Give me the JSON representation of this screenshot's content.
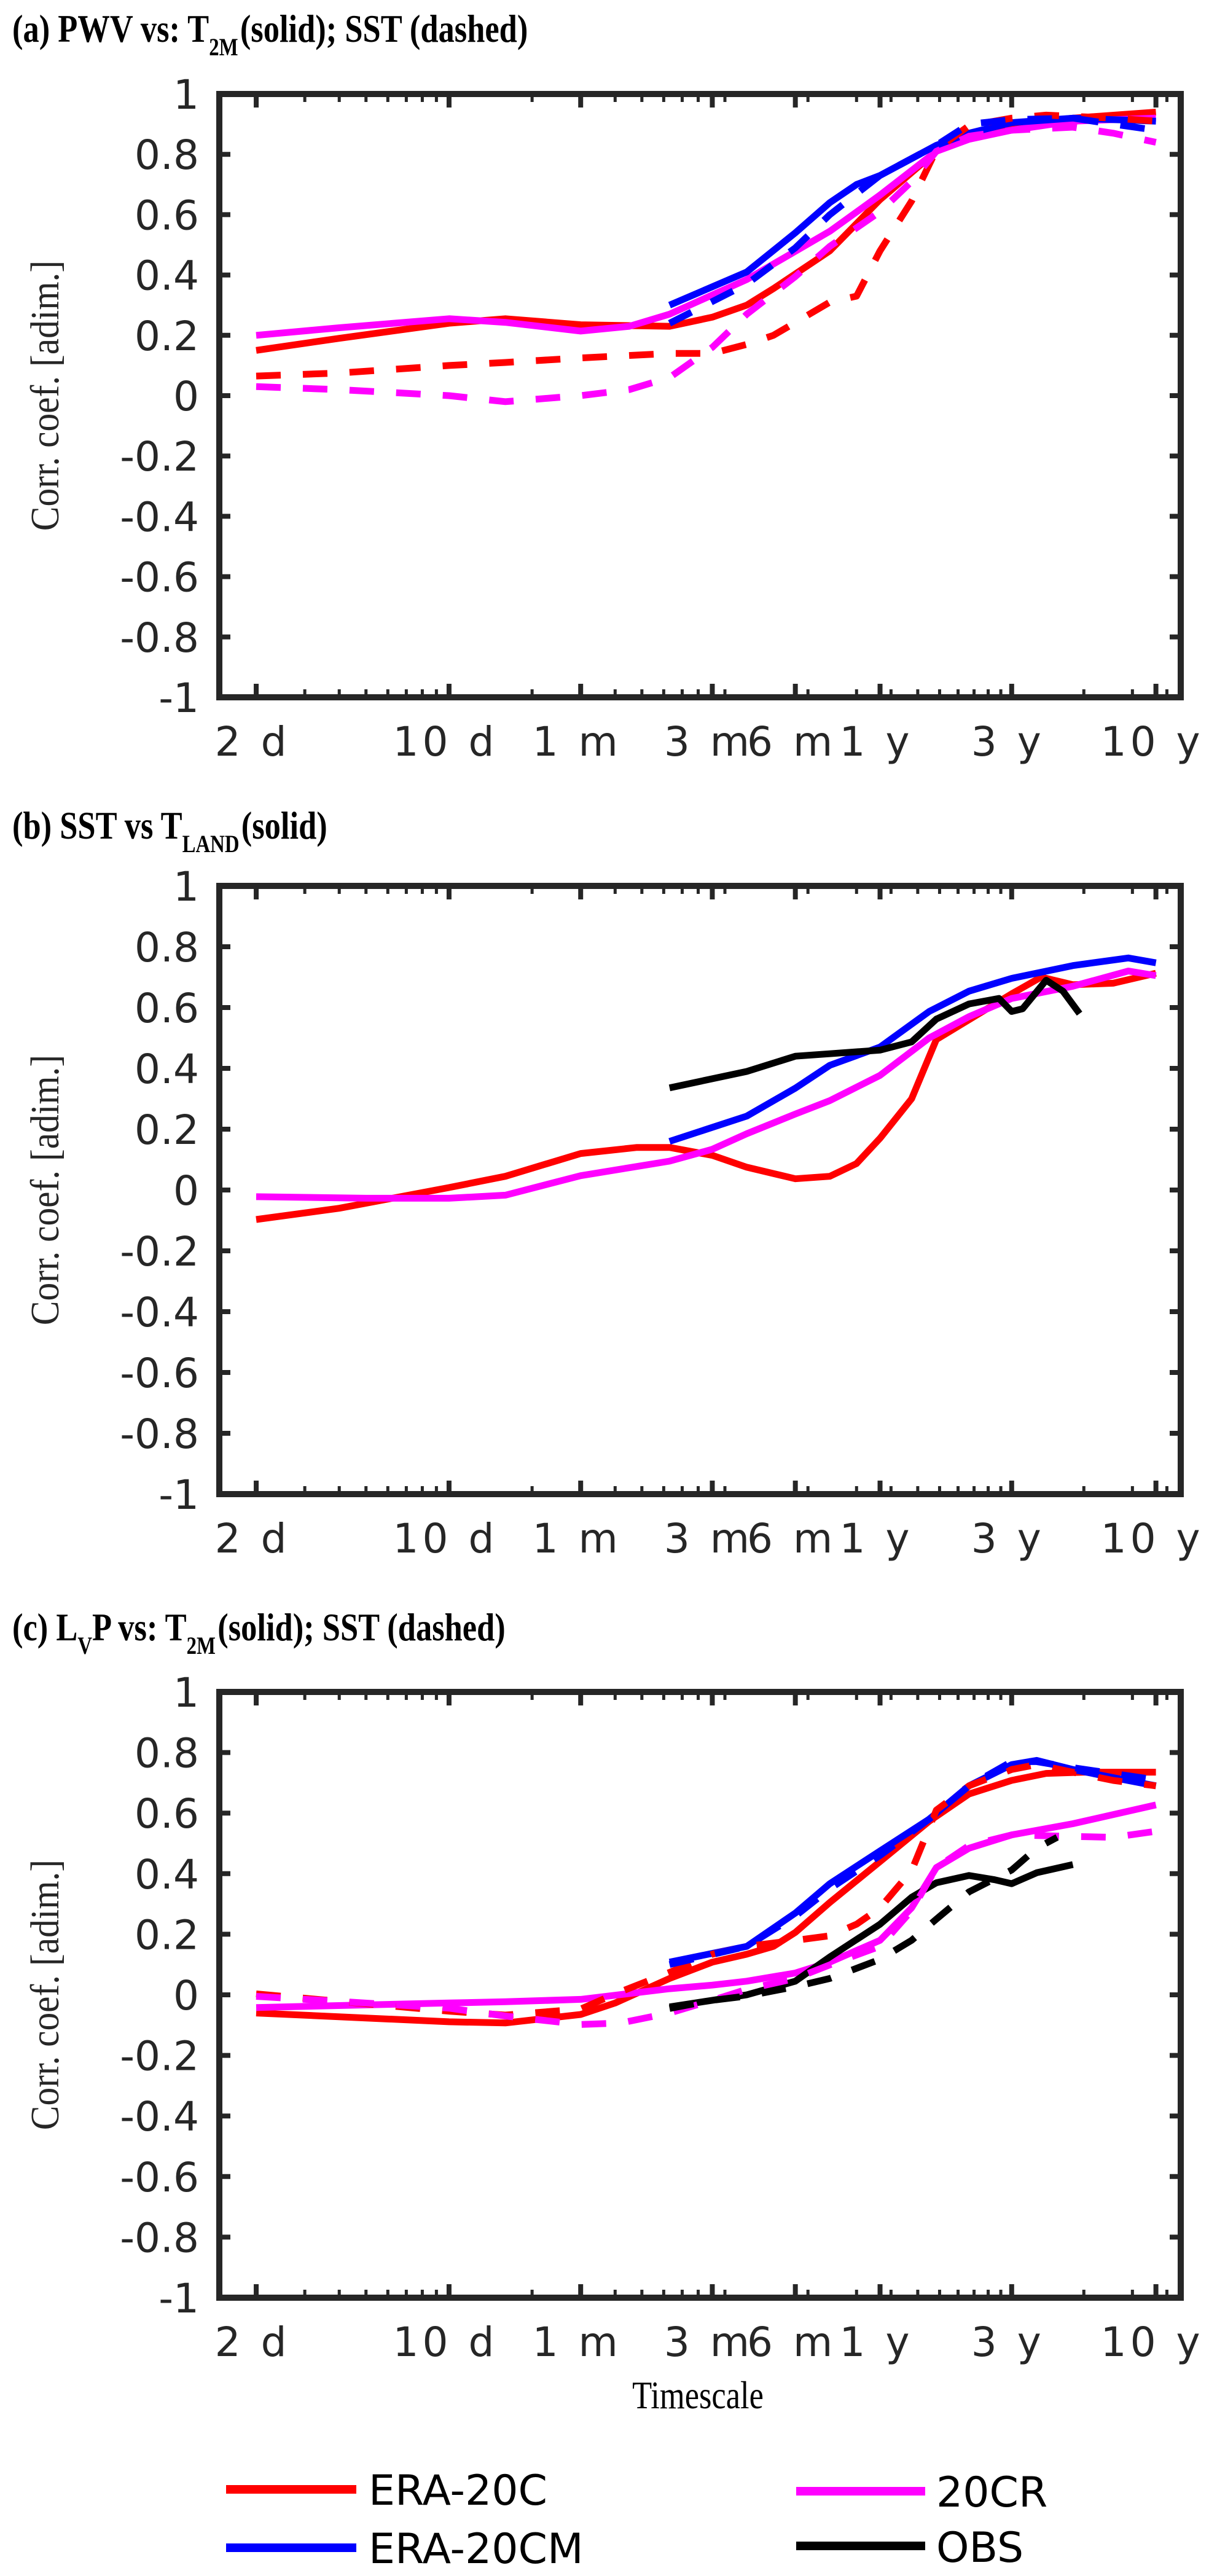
{
  "figure": {
    "xlabel": "Timescale",
    "ylabel": "Corr. coef. [adim.]"
  },
  "legend": {
    "placement": "bottom",
    "items": [
      {
        "label": "ERA-20C",
        "color": "#ff0000"
      },
      {
        "label": "20CR",
        "color": "#ff00ff"
      },
      {
        "label": "ERA-20CM",
        "color": "#0000ff"
      },
      {
        "label": "OBS",
        "color": "#000000"
      }
    ]
  },
  "chart_data": [
    {
      "type": "line",
      "panel": "a",
      "title": {
        "prefix": "(a) PWV vs: T",
        "sub": "2M",
        "suffix": "(solid); SST  (dashed)"
      },
      "xlabel": "Timescale",
      "ylabel": "Corr. coef. [adim.]",
      "xscale": "log",
      "xunit": "days",
      "xlim": [
        1.47,
        4490
      ],
      "ylim": [
        -1,
        1
      ],
      "grid": false,
      "xticks": [
        {
          "value": 2,
          "label": "2 d"
        },
        {
          "value": 10,
          "label": "10 d"
        },
        {
          "value": 30,
          "label": "1 m"
        },
        {
          "value": 90,
          "label": "3 m"
        },
        {
          "value": 180,
          "label": "6 m"
        },
        {
          "value": 365,
          "label": "1 y"
        },
        {
          "value": 1095,
          "label": "3 y"
        },
        {
          "value": 3650,
          "label": "10 y"
        }
      ],
      "yticks": [
        {
          "value": 1,
          "label": "1"
        },
        {
          "value": 0.8,
          "label": "0.8"
        },
        {
          "value": 0.6,
          "label": "0.6"
        },
        {
          "value": 0.4,
          "label": "0.4"
        },
        {
          "value": 0.2,
          "label": "0.2"
        },
        {
          "value": 0,
          "label": "0"
        },
        {
          "value": -0.2,
          "label": "-0.2"
        },
        {
          "value": -0.4,
          "label": "-0.4"
        },
        {
          "value": -0.6,
          "label": "-0.6"
        },
        {
          "value": -0.8,
          "label": "-0.8"
        },
        {
          "value": -1,
          "label": "-1"
        }
      ],
      "series": [
        {
          "name": "ERA-20C vs T2M",
          "dataset": "ERA-20C",
          "style": "solid",
          "color": "#ff0000",
          "x": [
            2,
            4,
            10,
            16,
            30,
            63,
            90,
            120,
            150,
            240,
            365,
            584,
            767,
            1095,
            1825,
            3650
          ],
          "y": [
            0.15,
            0.19,
            0.24,
            0.255,
            0.235,
            0.23,
            0.26,
            0.3,
            0.355,
            0.48,
            0.65,
            0.81,
            0.87,
            0.9,
            0.92,
            0.94
          ]
        },
        {
          "name": "20CR vs T2M",
          "dataset": "20CR",
          "style": "solid",
          "color": "#ff00ff",
          "x": [
            2,
            4,
            10,
            16,
            30,
            45,
            63,
            120,
            240,
            365,
            584,
            767,
            1095,
            1825,
            3650
          ],
          "y": [
            0.2,
            0.225,
            0.255,
            0.243,
            0.214,
            0.23,
            0.27,
            0.385,
            0.545,
            0.665,
            0.81,
            0.85,
            0.88,
            0.91,
            0.92
          ]
        },
        {
          "name": "ERA-20CM vs T2M",
          "dataset": "ERA-20CM",
          "style": "solid",
          "color": "#0000ff",
          "x": [
            63,
            120,
            180,
            240,
            300,
            365,
            584,
            767,
            1095,
            1825,
            3650
          ],
          "y": [
            0.3,
            0.41,
            0.54,
            0.64,
            0.7,
            0.73,
            0.83,
            0.87,
            0.905,
            0.92,
            0.91
          ]
        },
        {
          "name": "ERA-20C vs SST",
          "dataset": "ERA-20C",
          "style": "dashed",
          "color": "#ff0000",
          "x": [
            2,
            4,
            10,
            16,
            30,
            63,
            90,
            120,
            150,
            240,
            300,
            365,
            475,
            584,
            767,
            1095,
            1460,
            2555,
            3650
          ],
          "y": [
            0.065,
            0.075,
            0.1,
            0.11,
            0.125,
            0.14,
            0.14,
            0.17,
            0.2,
            0.31,
            0.33,
            0.48,
            0.645,
            0.815,
            0.895,
            0.92,
            0.93,
            0.92,
            0.91
          ]
        },
        {
          "name": "20CR vs SST",
          "dataset": "20CR",
          "style": "dashed",
          "color": "#ff00ff",
          "x": [
            2,
            4,
            10,
            16,
            30,
            45,
            63,
            90,
            120,
            180,
            240,
            365,
            475,
            584,
            767,
            1095,
            1825,
            2555,
            3650
          ],
          "y": [
            0.03,
            0.02,
            0.0,
            -0.02,
            0.0,
            0.02,
            0.06,
            0.16,
            0.27,
            0.395,
            0.495,
            0.61,
            0.71,
            0.81,
            0.86,
            0.88,
            0.89,
            0.87,
            0.84
          ]
        },
        {
          "name": "ERA-20CM vs SST",
          "dataset": "ERA-20CM",
          "style": "dashed",
          "color": "#0000ff",
          "x": [
            63,
            120,
            180,
            240,
            365,
            584,
            767,
            1095,
            1825,
            2555,
            3650
          ],
          "y": [
            0.24,
            0.37,
            0.49,
            0.6,
            0.73,
            0.83,
            0.9,
            0.915,
            0.92,
            0.9,
            0.88
          ]
        }
      ]
    },
    {
      "type": "line",
      "panel": "b",
      "title": {
        "prefix": "(b) SST vs T",
        "sub": "LAND",
        "suffix": "(solid)"
      },
      "xlabel": "Timescale",
      "ylabel": "Corr. coef. [adim.]",
      "xscale": "log",
      "xunit": "days",
      "xlim": [
        1.47,
        4490
      ],
      "ylim": [
        -1,
        1
      ],
      "grid": false,
      "xticks": [
        {
          "value": 2,
          "label": "2 d"
        },
        {
          "value": 10,
          "label": "10 d"
        },
        {
          "value": 30,
          "label": "1 m"
        },
        {
          "value": 90,
          "label": "3 m"
        },
        {
          "value": 180,
          "label": "6 m"
        },
        {
          "value": 365,
          "label": "1 y"
        },
        {
          "value": 1095,
          "label": "3 y"
        },
        {
          "value": 3650,
          "label": "10 y"
        }
      ],
      "yticks": [
        {
          "value": 1,
          "label": "1"
        },
        {
          "value": 0.8,
          "label": "0.8"
        },
        {
          "value": 0.6,
          "label": "0.6"
        },
        {
          "value": 0.4,
          "label": "0.4"
        },
        {
          "value": 0.2,
          "label": "0.2"
        },
        {
          "value": 0,
          "label": "0"
        },
        {
          "value": -0.2,
          "label": "-0.2"
        },
        {
          "value": -0.4,
          "label": "-0.4"
        },
        {
          "value": -0.6,
          "label": "-0.6"
        },
        {
          "value": -0.8,
          "label": "-0.8"
        },
        {
          "value": -1,
          "label": "-1"
        }
      ],
      "series": [
        {
          "name": "ERA-20C",
          "dataset": "ERA-20C",
          "style": "solid",
          "color": "#ff0000",
          "x": [
            2,
            4,
            10,
            16,
            30,
            48,
            63,
            90,
            120,
            180,
            240,
            300,
            365,
            475,
            584,
            767,
            1095,
            1400,
            1825,
            2555,
            3650
          ],
          "y": [
            -0.097,
            -0.06,
            0.008,
            0.045,
            0.12,
            0.14,
            0.14,
            0.114,
            0.075,
            0.037,
            0.045,
            0.087,
            0.17,
            0.3,
            0.495,
            0.56,
            0.645,
            0.7,
            0.675,
            0.68,
            0.713
          ]
        },
        {
          "name": "20CR",
          "dataset": "20CR",
          "style": "solid",
          "color": "#ff00ff",
          "x": [
            2,
            5,
            10,
            16,
            30,
            63,
            90,
            120,
            180,
            240,
            365,
            550,
            767,
            1095,
            1825,
            2900,
            3650
          ],
          "y": [
            -0.022,
            -0.027,
            -0.027,
            -0.017,
            0.047,
            0.095,
            0.134,
            0.185,
            0.25,
            0.294,
            0.377,
            0.5,
            0.57,
            0.63,
            0.67,
            0.72,
            0.705
          ]
        },
        {
          "name": "ERA-20CM",
          "dataset": "ERA-20CM",
          "style": "solid",
          "color": "#0000ff",
          "x": [
            63,
            120,
            180,
            240,
            365,
            550,
            767,
            1095,
            1825,
            2900,
            3650
          ],
          "y": [
            0.16,
            0.243,
            0.335,
            0.41,
            0.47,
            0.587,
            0.654,
            0.696,
            0.738,
            0.763,
            0.747
          ]
        },
        {
          "name": "OBS",
          "dataset": "OBS",
          "style": "solid",
          "color": "#000000",
          "x": [
            63,
            120,
            180,
            240,
            365,
            475,
            584,
            767,
            985,
            1095,
            1200,
            1460,
            1680,
            1930
          ],
          "y": [
            0.336,
            0.39,
            0.44,
            0.448,
            0.46,
            0.487,
            0.562,
            0.612,
            0.63,
            0.587,
            0.596,
            0.69,
            0.654,
            0.58
          ]
        }
      ]
    },
    {
      "type": "line",
      "panel": "c",
      "title": {
        "prefix": "(c) L",
        "sub1": "V",
        "middle": "P  vs: T",
        "sub": "2M",
        "suffix": "(solid); SST (dashed)"
      },
      "xlabel": "Timescale",
      "ylabel": "Corr. coef. [adim.]",
      "xscale": "log",
      "xunit": "days",
      "xlim": [
        1.47,
        4490
      ],
      "ylim": [
        -1,
        1
      ],
      "grid": false,
      "xticks": [
        {
          "value": 2,
          "label": "2 d"
        },
        {
          "value": 10,
          "label": "10 d"
        },
        {
          "value": 30,
          "label": "1 m"
        },
        {
          "value": 90,
          "label": "3 m"
        },
        {
          "value": 180,
          "label": "6 m"
        },
        {
          "value": 365,
          "label": "1 y"
        },
        {
          "value": 1095,
          "label": "3 y"
        },
        {
          "value": 3650,
          "label": "10 y"
        }
      ],
      "yticks": [
        {
          "value": 1,
          "label": "1"
        },
        {
          "value": 0.8,
          "label": "0.8"
        },
        {
          "value": 0.6,
          "label": "0.6"
        },
        {
          "value": 0.4,
          "label": "0.4"
        },
        {
          "value": 0.2,
          "label": "0.2"
        },
        {
          "value": 0,
          "label": "0"
        },
        {
          "value": -0.2,
          "label": "-0.2"
        },
        {
          "value": -0.4,
          "label": "-0.4"
        },
        {
          "value": -0.6,
          "label": "-0.6"
        },
        {
          "value": -0.8,
          "label": "-0.8"
        },
        {
          "value": -1,
          "label": "-1"
        }
      ],
      "series": [
        {
          "name": "ERA-20C vs T2M",
          "dataset": "ERA-20C",
          "style": "solid",
          "color": "#ff0000",
          "x": [
            2,
            10,
            16,
            30,
            40,
            63,
            90,
            120,
            150,
            180,
            240,
            365,
            550,
            767,
            1095,
            1460,
            2000,
            3650
          ],
          "y": [
            -0.06,
            -0.089,
            -0.093,
            -0.065,
            -0.027,
            0.054,
            0.108,
            0.134,
            0.16,
            0.206,
            0.305,
            0.44,
            0.573,
            0.663,
            0.708,
            0.731,
            0.735,
            0.735
          ]
        },
        {
          "name": "20CR vs T2M",
          "dataset": "20CR",
          "style": "solid",
          "color": "#ff00ff",
          "x": [
            2,
            10,
            16,
            30,
            63,
            90,
            120,
            180,
            240,
            365,
            475,
            584,
            767,
            1095,
            1825,
            3650
          ],
          "y": [
            -0.042,
            -0.027,
            -0.023,
            -0.015,
            0.02,
            0.032,
            0.045,
            0.072,
            0.108,
            0.18,
            0.287,
            0.42,
            0.484,
            0.528,
            0.565,
            0.627
          ]
        },
        {
          "name": "ERA-20CM vs T2M",
          "dataset": "ERA-20CM",
          "style": "solid",
          "color": "#0000ff",
          "x": [
            63,
            120,
            180,
            240,
            365,
            550,
            767,
            1095,
            1350,
            1825,
            2555,
            3650
          ],
          "y": [
            0.108,
            0.16,
            0.27,
            0.367,
            0.475,
            0.58,
            0.69,
            0.76,
            0.774,
            0.744,
            0.717,
            0.69
          ]
        },
        {
          "name": "OBS vs T2M",
          "dataset": "OBS",
          "style": "solid",
          "color": "#000000",
          "x": [
            63,
            90,
            120,
            180,
            240,
            365,
            475,
            584,
            767,
            950,
            1095,
            1350,
            1825
          ],
          "y": [
            -0.04,
            -0.018,
            0.0,
            0.045,
            0.125,
            0.233,
            0.322,
            0.37,
            0.394,
            0.38,
            0.367,
            0.403,
            0.43
          ]
        },
        {
          "name": "ERA-20C vs SST",
          "dataset": "ERA-20C",
          "style": "dashed",
          "color": "#ff0000",
          "x": [
            2,
            10,
            16,
            30,
            40,
            63,
            90,
            120,
            180,
            240,
            300,
            365,
            475,
            584,
            767,
            1095,
            1350,
            1825,
            2555,
            3650
          ],
          "y": [
            0.003,
            -0.054,
            -0.067,
            -0.047,
            0.003,
            0.074,
            0.134,
            0.16,
            0.18,
            0.195,
            0.233,
            0.287,
            0.41,
            0.61,
            0.69,
            0.744,
            0.76,
            0.735,
            0.708,
            0.69
          ]
        },
        {
          "name": "20CR vs SST",
          "dataset": "20CR",
          "style": "dashed",
          "color": "#ff00ff",
          "x": [
            2,
            10,
            16,
            30,
            42,
            63,
            90,
            120,
            180,
            240,
            365,
            475,
            584,
            767,
            1095,
            1825,
            2555,
            3650
          ],
          "y": [
            -0.005,
            -0.044,
            -0.07,
            -0.098,
            -0.093,
            -0.06,
            -0.018,
            0.018,
            0.054,
            0.099,
            0.16,
            0.278,
            0.42,
            0.493,
            0.528,
            0.523,
            0.52,
            0.54
          ]
        },
        {
          "name": "ERA-20CM vs SST",
          "dataset": "ERA-20CM",
          "style": "dashed",
          "color": "#0000ff",
          "x": [
            63,
            120,
            180,
            240,
            365,
            550,
            767,
            1095,
            1350,
            1825,
            3650
          ],
          "y": [
            0.1,
            0.16,
            0.26,
            0.35,
            0.46,
            0.58,
            0.69,
            0.77,
            0.77,
            0.75,
            0.71
          ]
        },
        {
          "name": "OBS vs SST",
          "dataset": "OBS",
          "style": "dashed",
          "color": "#000000",
          "x": [
            63,
            90,
            120,
            180,
            240,
            365,
            475,
            584,
            767,
            1095,
            1350,
            1600
          ],
          "y": [
            -0.045,
            -0.018,
            -0.004,
            0.027,
            0.054,
            0.117,
            0.18,
            0.25,
            0.34,
            0.412,
            0.484,
            0.52
          ]
        }
      ]
    }
  ]
}
